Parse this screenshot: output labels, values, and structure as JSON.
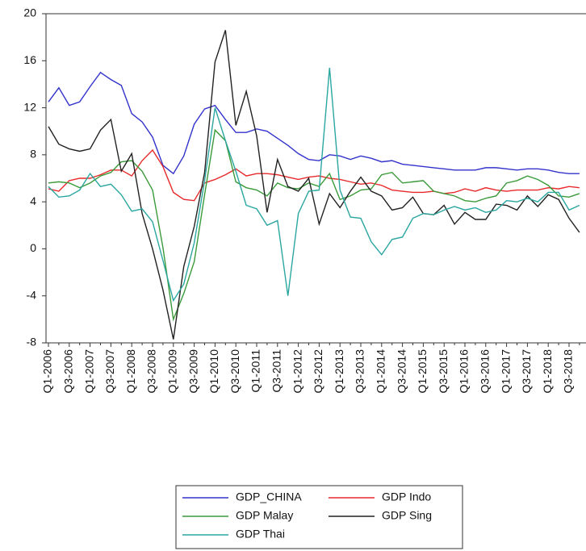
{
  "chart_data": {
    "type": "line",
    "categories": [
      "Q1-2006",
      null,
      "Q3-2006",
      null,
      "Q1-2007",
      null,
      "Q3-2007",
      null,
      "Q1-2008",
      null,
      "Q3-2008",
      null,
      "Q1-2009",
      null,
      "Q3-2009",
      null,
      "Q1-2010",
      null,
      "Q3-2010",
      null,
      "Q1-2011",
      null,
      "Q3-2011",
      null,
      "Q1-2012",
      null,
      "Q3-2012",
      null,
      "Q1-2013",
      null,
      "Q3-2013",
      null,
      "Q1-2014",
      null,
      "Q3-2014",
      null,
      "Q1-2015",
      null,
      "Q3-2015",
      null,
      "Q1-2016",
      null,
      "Q3-2016",
      null,
      "Q1-2017",
      null,
      "Q3-2017",
      null,
      "Q1-2018",
      null,
      "Q3-2018",
      null
    ],
    "series": [
      {
        "name": "GDP_CHINA",
        "color": "#3333cc",
        "values": [
          12.5,
          13.7,
          12.2,
          12.5,
          13.8,
          15.0,
          14.4,
          13.9,
          11.5,
          10.8,
          9.5,
          7.1,
          6.4,
          7.9,
          10.6,
          11.9,
          12.2,
          11.0,
          9.9,
          9.9,
          10.2,
          10.0,
          9.4,
          8.8,
          8.1,
          7.6,
          7.5,
          8.0,
          7.9,
          7.6,
          7.9,
          7.7,
          7.4,
          7.5,
          7.2,
          7.1,
          7.0,
          6.9,
          6.8,
          6.7,
          6.7,
          6.7,
          6.9,
          6.9,
          6.8,
          6.7,
          6.8,
          6.8,
          6.7,
          6.5,
          6.4,
          6.4
        ]
      },
      {
        "name": "GDP Indo",
        "color": "#e8292b",
        "values": [
          5.1,
          4.9,
          5.8,
          6.0,
          6.0,
          6.3,
          6.7,
          6.7,
          6.2,
          7.5,
          8.4,
          7.0,
          4.8,
          4.2,
          4.1,
          5.6,
          5.9,
          6.3,
          6.8,
          6.2,
          6.4,
          6.4,
          6.3,
          6.1,
          5.9,
          6.1,
          6.2,
          6.0,
          5.9,
          5.7,
          5.5,
          5.6,
          5.4,
          5.0,
          4.9,
          4.8,
          4.8,
          4.9,
          4.7,
          4.8,
          5.1,
          4.9,
          5.2,
          5.0,
          4.9,
          5.0,
          5.0,
          5.0,
          5.2,
          5.1,
          5.3,
          5.2
        ]
      },
      {
        "name": "GDP Malay",
        "color": "#3a9a3a",
        "values": [
          5.6,
          5.7,
          5.6,
          5.2,
          5.6,
          6.2,
          6.5,
          7.4,
          7.5,
          6.6,
          5.0,
          0.1,
          -6.0,
          -3.8,
          -1.1,
          4.6,
          10.1,
          9.2,
          5.7,
          5.2,
          5.0,
          4.5,
          5.6,
          5.2,
          5.1,
          5.6,
          5.3,
          6.4,
          4.2,
          4.5,
          5.0,
          5.1,
          6.3,
          6.5,
          5.6,
          5.7,
          5.8,
          4.9,
          4.7,
          4.5,
          4.1,
          4.0,
          4.3,
          4.5,
          5.6,
          5.8,
          6.2,
          5.9,
          5.4,
          4.5,
          4.4,
          4.7
        ]
      },
      {
        "name": "GDP Sing",
        "color": "#222222",
        "values": [
          10.4,
          8.9,
          8.5,
          8.3,
          8.5,
          10.1,
          11.0,
          6.6,
          8.1,
          3.0,
          0.0,
          -3.5,
          -7.7,
          -1.5,
          1.9,
          6.5,
          15.9,
          18.6,
          10.5,
          13.4,
          9.6,
          3.1,
          7.6,
          5.3,
          4.9,
          6.0,
          2.1,
          4.7,
          3.5,
          4.9,
          6.1,
          4.9,
          4.5,
          3.3,
          3.5,
          4.4,
          3.0,
          2.9,
          3.7,
          2.1,
          3.1,
          2.5,
          2.5,
          3.8,
          3.7,
          3.3,
          4.5,
          3.6,
          4.6,
          4.2,
          2.6,
          1.4
        ]
      },
      {
        "name": "GDP Thai",
        "color": "#2aa6a0",
        "values": [
          5.3,
          4.4,
          4.5,
          5.0,
          6.4,
          5.3,
          5.5,
          4.6,
          3.2,
          3.4,
          2.3,
          -1.0,
          -4.4,
          -3.0,
          0.5,
          5.8,
          12.0,
          9.2,
          6.6,
          3.7,
          3.4,
          2.0,
          2.4,
          -4.0,
          3.0,
          4.9,
          5.0,
          15.4,
          5.0,
          2.7,
          2.6,
          0.6,
          -0.5,
          0.8,
          1.0,
          2.6,
          3.0,
          2.9,
          3.3,
          3.6,
          3.3,
          3.5,
          3.1,
          3.3,
          4.1,
          4.0,
          4.3,
          4.0,
          4.8,
          4.8,
          3.3,
          3.7
        ]
      }
    ],
    "ylim": [
      -8,
      20
    ],
    "yticks": [
      -8,
      -4,
      0,
      4,
      8,
      12,
      16,
      20
    ],
    "grid": false
  }
}
